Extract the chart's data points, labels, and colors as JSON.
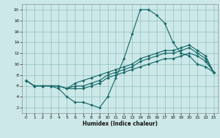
{
  "xlabel": "Humidex (Indice chaleur)",
  "bg_color": "#cde8e8",
  "grid_color": "#8bbcbc",
  "line_color": "#1a6b6b",
  "marker": "D",
  "markersize": 2.0,
  "linewidth": 0.9,
  "xlim": [
    -0.5,
    23.5
  ],
  "ylim": [
    1,
    21
  ],
  "xticks": [
    0,
    1,
    2,
    3,
    4,
    5,
    6,
    7,
    8,
    9,
    10,
    11,
    12,
    13,
    14,
    15,
    16,
    17,
    18,
    19,
    20,
    21,
    22,
    23
  ],
  "yticks": [
    2,
    4,
    6,
    8,
    10,
    12,
    14,
    16,
    18,
    20
  ],
  "series": [
    [
      7.0,
      6.0,
      6.0,
      6.0,
      5.5,
      4.0,
      3.0,
      3.0,
      2.5,
      2.0,
      4.0,
      7.5,
      11.0,
      15.5,
      20.0,
      20.0,
      19.0,
      17.5,
      14.0,
      12.0,
      11.5,
      10.0,
      9.5,
      8.5
    ],
    [
      7.0,
      6.0,
      6.0,
      6.0,
      6.0,
      5.5,
      5.5,
      5.5,
      6.0,
      6.5,
      7.5,
      8.0,
      8.5,
      9.0,
      9.5,
      10.0,
      10.5,
      11.0,
      11.0,
      11.5,
      12.0,
      11.5,
      10.5,
      8.5
    ],
    [
      7.0,
      6.0,
      6.0,
      6.0,
      6.0,
      5.5,
      6.0,
      6.0,
      6.5,
      7.0,
      8.0,
      8.5,
      9.0,
      9.5,
      10.5,
      11.0,
      11.5,
      12.0,
      12.0,
      12.5,
      13.0,
      12.0,
      11.0,
      8.5
    ],
    [
      7.0,
      6.0,
      6.0,
      6.0,
      6.0,
      5.5,
      6.5,
      7.0,
      7.5,
      8.0,
      8.5,
      9.0,
      9.5,
      10.0,
      11.0,
      11.5,
      12.0,
      12.5,
      12.5,
      13.0,
      13.5,
      12.5,
      11.5,
      8.5
    ]
  ]
}
